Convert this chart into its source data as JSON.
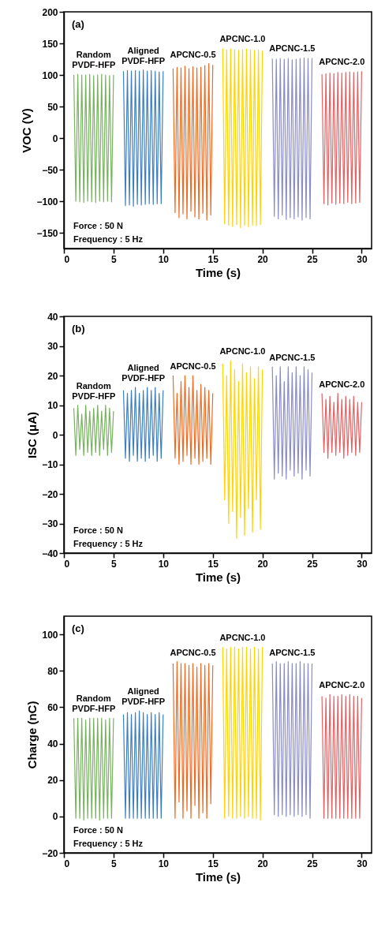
{
  "chart_data": [
    {
      "type": "line",
      "title": "(a)",
      "xlabel": "Time (s)",
      "ylabel": "VOC (V)",
      "xlim": [
        0,
        31
      ],
      "ylim": [
        -175,
        200
      ],
      "xticks": [
        0,
        5,
        10,
        15,
        20,
        25,
        30
      ],
      "yticks": [
        -150,
        -100,
        -50,
        0,
        50,
        100,
        150,
        200
      ],
      "annotations": [
        "Force : 50 N",
        "Frequency : 5 Hz"
      ],
      "series": [
        {
          "name": "Random PVDF-HFP",
          "color": "#77b35f",
          "x": [
            1,
            1.2,
            1.4,
            1.6,
            1.8,
            2,
            2.2,
            2.4,
            2.6,
            2.8,
            3,
            3.2,
            3.4,
            3.6,
            3.8,
            4,
            4.2,
            4.4,
            4.6,
            4.8,
            5
          ],
          "values": [
            100,
            -100,
            101,
            -101,
            100,
            -102,
            100,
            -100,
            101,
            -101,
            99,
            -102,
            100,
            -100,
            101,
            -101,
            100,
            -100,
            99,
            -101,
            100
          ]
        },
        {
          "name": "Aligned PVDF-HFP",
          "color": "#3c7fc1",
          "x": [
            6,
            6.2,
            6.4,
            6.6,
            6.8,
            7,
            7.2,
            7.4,
            7.6,
            7.8,
            8,
            8.2,
            8.4,
            8.6,
            8.8,
            9,
            9.2,
            9.4,
            9.6,
            9.8,
            10
          ],
          "values": [
            106,
            -107,
            107,
            -106,
            106,
            -108,
            107,
            -105,
            106,
            -106,
            108,
            -105,
            106,
            -104,
            107,
            -105,
            106,
            -104,
            105,
            -104,
            106
          ]
        },
        {
          "name": "APCNC-0.5",
          "color": "#f06a22",
          "x": [
            11,
            11.2,
            11.4,
            11.6,
            11.8,
            12,
            12.2,
            12.4,
            12.6,
            12.8,
            13,
            13.2,
            13.4,
            13.6,
            13.8,
            14,
            14.2,
            14.4,
            14.6,
            14.8,
            15
          ],
          "values": [
            110,
            -118,
            112,
            -126,
            111,
            -120,
            114,
            -128,
            110,
            -116,
            113,
            -125,
            111,
            -128,
            112,
            -119,
            115,
            -130,
            118,
            -122,
            116
          ]
        },
        {
          "name": "APCNC-1.0",
          "color": "#ffd400",
          "x": [
            16,
            16.2,
            16.4,
            16.6,
            16.8,
            17,
            17.2,
            17.4,
            17.6,
            17.8,
            18,
            18.2,
            18.4,
            18.6,
            18.8,
            19,
            19.2,
            19.4,
            19.6,
            19.8,
            20
          ],
          "values": [
            142,
            -136,
            140,
            -138,
            141,
            -140,
            140,
            -137,
            139,
            -142,
            140,
            -138,
            141,
            -141,
            140,
            -138,
            139,
            -139,
            140,
            -137,
            138
          ]
        },
        {
          "name": "APCNC-1.5",
          "color": "#8b8cc4",
          "x": [
            21,
            21.2,
            21.4,
            21.6,
            21.8,
            22,
            22.2,
            22.4,
            22.6,
            22.8,
            23,
            23.2,
            23.4,
            23.6,
            23.8,
            24,
            24.2,
            24.4,
            24.6,
            24.8,
            25
          ],
          "values": [
            126,
            -124,
            125,
            -128,
            126,
            -122,
            125,
            -129,
            126,
            -126,
            124,
            -128,
            125,
            -125,
            126,
            -130,
            127,
            -126,
            126,
            -128,
            127
          ]
        },
        {
          "name": "APCNC-2.0",
          "color": "#e36264",
          "x": [
            26,
            26.2,
            26.4,
            26.6,
            26.8,
            27,
            27.2,
            27.4,
            27.6,
            27.8,
            28,
            28.2,
            28.4,
            28.6,
            28.8,
            29,
            29.2,
            29.4,
            29.6,
            29.8,
            30
          ],
          "values": [
            101,
            -104,
            102,
            -106,
            103,
            -103,
            102,
            -105,
            104,
            -103,
            103,
            -104,
            104,
            -102,
            105,
            -104,
            104,
            -103,
            105,
            -102,
            106
          ]
        }
      ]
    },
    {
      "type": "line",
      "title": "(b)",
      "xlabel": "Time (s)",
      "ylabel": "ISC (μA)",
      "xlim": [
        0,
        31
      ],
      "ylim": [
        -40,
        40
      ],
      "xticks": [
        0,
        5,
        10,
        15,
        20,
        25,
        30
      ],
      "yticks": [
        -40,
        -30,
        -20,
        -10,
        0,
        10,
        20,
        30,
        40
      ],
      "annotations": [
        "Force : 50 N",
        "Frequency : 5 Hz"
      ],
      "series": [
        {
          "name": "Random PVDF-HFP",
          "color": "#77b35f",
          "x": [
            1,
            1.2,
            1.4,
            1.6,
            1.8,
            2,
            2.2,
            2.4,
            2.6,
            2.8,
            3,
            3.2,
            3.4,
            3.6,
            3.8,
            4,
            4.2,
            4.4,
            4.6,
            4.8,
            5
          ],
          "values": [
            9,
            -7,
            10,
            -5,
            7,
            -7,
            10,
            -6,
            8,
            -7,
            9,
            -6,
            10,
            -7,
            8,
            -5,
            10,
            -7,
            9,
            -6,
            8
          ]
        },
        {
          "name": "Aligned PVDF-HFP",
          "color": "#3c7fc1",
          "x": [
            6,
            6.2,
            6.4,
            6.6,
            6.8,
            7,
            7.2,
            7.4,
            7.6,
            7.8,
            8,
            8.2,
            8.4,
            8.6,
            8.8,
            9,
            9.2,
            9.4,
            9.6,
            9.8,
            10
          ],
          "values": [
            15,
            -8,
            14,
            -9,
            15,
            -7,
            16,
            -9,
            14,
            -8,
            15,
            -9,
            16,
            -8,
            15,
            -7,
            16,
            -9,
            14,
            -8,
            15
          ]
        },
        {
          "name": "APCNC-0.5",
          "color": "#f06a22",
          "x": [
            11,
            11.2,
            11.4,
            11.6,
            11.8,
            12,
            12.2,
            12.4,
            12.6,
            12.8,
            13,
            13.2,
            13.4,
            13.6,
            13.8,
            14,
            14.2,
            14.4,
            14.6,
            14.8,
            15
          ],
          "values": [
            20,
            -8,
            14,
            -10,
            18,
            -9,
            20,
            -7,
            16,
            -10,
            20,
            -8,
            15,
            -10,
            17,
            -9,
            16,
            -8,
            15,
            -10,
            14
          ]
        },
        {
          "name": "APCNC-1.0",
          "color": "#ffd400",
          "x": [
            16,
            16.2,
            16.4,
            16.6,
            16.8,
            17,
            17.2,
            17.4,
            17.6,
            17.8,
            18,
            18.2,
            18.4,
            18.6,
            18.8,
            19,
            19.2,
            19.4,
            19.6,
            19.8,
            20
          ],
          "values": [
            24,
            -22,
            20,
            -30,
            25,
            -26,
            22,
            -35,
            18,
            -28,
            24,
            -34,
            21,
            -25,
            23,
            -33,
            19,
            -22,
            23,
            -32,
            22
          ]
        },
        {
          "name": "APCNC-1.5",
          "color": "#8b8cc4",
          "x": [
            21,
            21.2,
            21.4,
            21.6,
            21.8,
            22,
            22.2,
            22.4,
            22.6,
            22.8,
            23,
            23.2,
            23.4,
            23.6,
            23.8,
            24,
            24.2,
            24.4,
            24.6,
            24.8,
            25
          ],
          "values": [
            23,
            -15,
            20,
            -13,
            23,
            -14,
            18,
            -15,
            23,
            -12,
            21,
            -14,
            23,
            -13,
            20,
            -15,
            23,
            -12,
            22,
            -14,
            21
          ]
        },
        {
          "name": "APCNC-2.0",
          "color": "#e36264",
          "x": [
            26,
            26.2,
            26.4,
            26.6,
            26.8,
            27,
            27.2,
            27.4,
            27.6,
            27.8,
            28,
            28.2,
            28.4,
            28.6,
            28.8,
            29,
            29.2,
            29.4,
            29.6,
            29.8,
            30
          ],
          "values": [
            14,
            -6,
            12,
            -8,
            13,
            -6,
            11,
            -7,
            14,
            -6,
            12,
            -8,
            13,
            -7,
            12,
            -6,
            13,
            -7,
            11,
            -6,
            11
          ]
        }
      ]
    },
    {
      "type": "line",
      "title": "(c)",
      "xlabel": "Time (s)",
      "ylabel": "Charge (nC)",
      "xlim": [
        0,
        31
      ],
      "ylim": [
        -20,
        110
      ],
      "xticks": [
        0,
        5,
        10,
        15,
        20,
        25,
        30
      ],
      "yticks": [
        -20,
        0,
        20,
        40,
        60,
        80,
        100
      ],
      "annotations": [
        "Force : 50 N",
        "Frequency : 5 Hz"
      ],
      "series": [
        {
          "name": "Random PVDF-HFP",
          "color": "#77b35f",
          "x": [
            1,
            1.2,
            1.4,
            1.6,
            1.8,
            2,
            2.2,
            2.4,
            2.6,
            2.8,
            3,
            3.2,
            3.4,
            3.6,
            3.8,
            4,
            4.2,
            4.4,
            4.6,
            4.8,
            5
          ],
          "values": [
            54,
            -1,
            54,
            -1,
            54,
            -2,
            53,
            -1,
            54,
            -1,
            54,
            -1,
            54,
            -2,
            54,
            -1,
            53,
            -1,
            54,
            -1,
            54
          ]
        },
        {
          "name": "Aligned PVDF-HFP",
          "color": "#3c7fc1",
          "x": [
            6,
            6.2,
            6.4,
            6.6,
            6.8,
            7,
            7.2,
            7.4,
            7.6,
            7.8,
            8,
            8.2,
            8.4,
            8.6,
            8.8,
            9,
            9.2,
            9.4,
            9.6,
            9.8,
            10
          ],
          "values": [
            56,
            -1,
            57,
            -1,
            56,
            -1,
            57,
            -1,
            58,
            -1,
            57,
            -1,
            56,
            -1,
            57,
            -1,
            56,
            -1,
            57,
            -1,
            56
          ]
        },
        {
          "name": "APCNC-0.5",
          "color": "#f06a22",
          "x": [
            11,
            11.2,
            11.4,
            11.6,
            11.8,
            12,
            12.2,
            12.4,
            12.6,
            12.8,
            13,
            13.2,
            13.4,
            13.6,
            13.8,
            14,
            14.2,
            14.4,
            14.6,
            14.8,
            15
          ],
          "values": [
            84,
            -1,
            85,
            8,
            84,
            -1,
            84,
            3,
            83,
            -1,
            84,
            6,
            82,
            -1,
            84,
            2,
            83,
            -1,
            84,
            7,
            83
          ]
        },
        {
          "name": "APCNC-1.0",
          "color": "#ffd400",
          "x": [
            16,
            16.2,
            16.4,
            16.6,
            16.8,
            17,
            17.2,
            17.4,
            17.6,
            17.8,
            18,
            18.2,
            18.4,
            18.6,
            18.8,
            19,
            19.2,
            19.4,
            19.6,
            19.8,
            20
          ],
          "values": [
            93,
            -1,
            92,
            0,
            93,
            -1,
            93,
            -1,
            92,
            0,
            93,
            -1,
            93,
            0,
            92,
            -1,
            93,
            -1,
            92,
            -2,
            93
          ]
        },
        {
          "name": "APCNC-1.5",
          "color": "#8b8cc4",
          "x": [
            21,
            21.2,
            21.4,
            21.6,
            21.8,
            22,
            22.2,
            22.4,
            22.6,
            22.8,
            23,
            23.2,
            23.4,
            23.6,
            23.8,
            24,
            24.2,
            24.4,
            24.6,
            24.8,
            25
          ],
          "values": [
            84,
            1,
            85,
            0,
            84,
            1,
            84,
            0,
            85,
            1,
            84,
            0,
            84,
            1,
            85,
            0,
            84,
            1,
            84,
            -1,
            84
          ]
        },
        {
          "name": "APCNC-2.0",
          "color": "#e36264",
          "x": [
            26,
            26.2,
            26.4,
            26.6,
            26.8,
            27,
            27.2,
            27.4,
            27.6,
            27.8,
            28,
            28.2,
            28.4,
            28.6,
            28.8,
            29,
            29.2,
            29.4,
            29.6,
            29.8,
            30
          ],
          "values": [
            66,
            -1,
            65,
            -1,
            67,
            -1,
            66,
            -1,
            66,
            -1,
            67,
            -1,
            66,
            -1,
            67,
            -1,
            66,
            -1,
            66,
            -1,
            65
          ]
        }
      ]
    }
  ]
}
